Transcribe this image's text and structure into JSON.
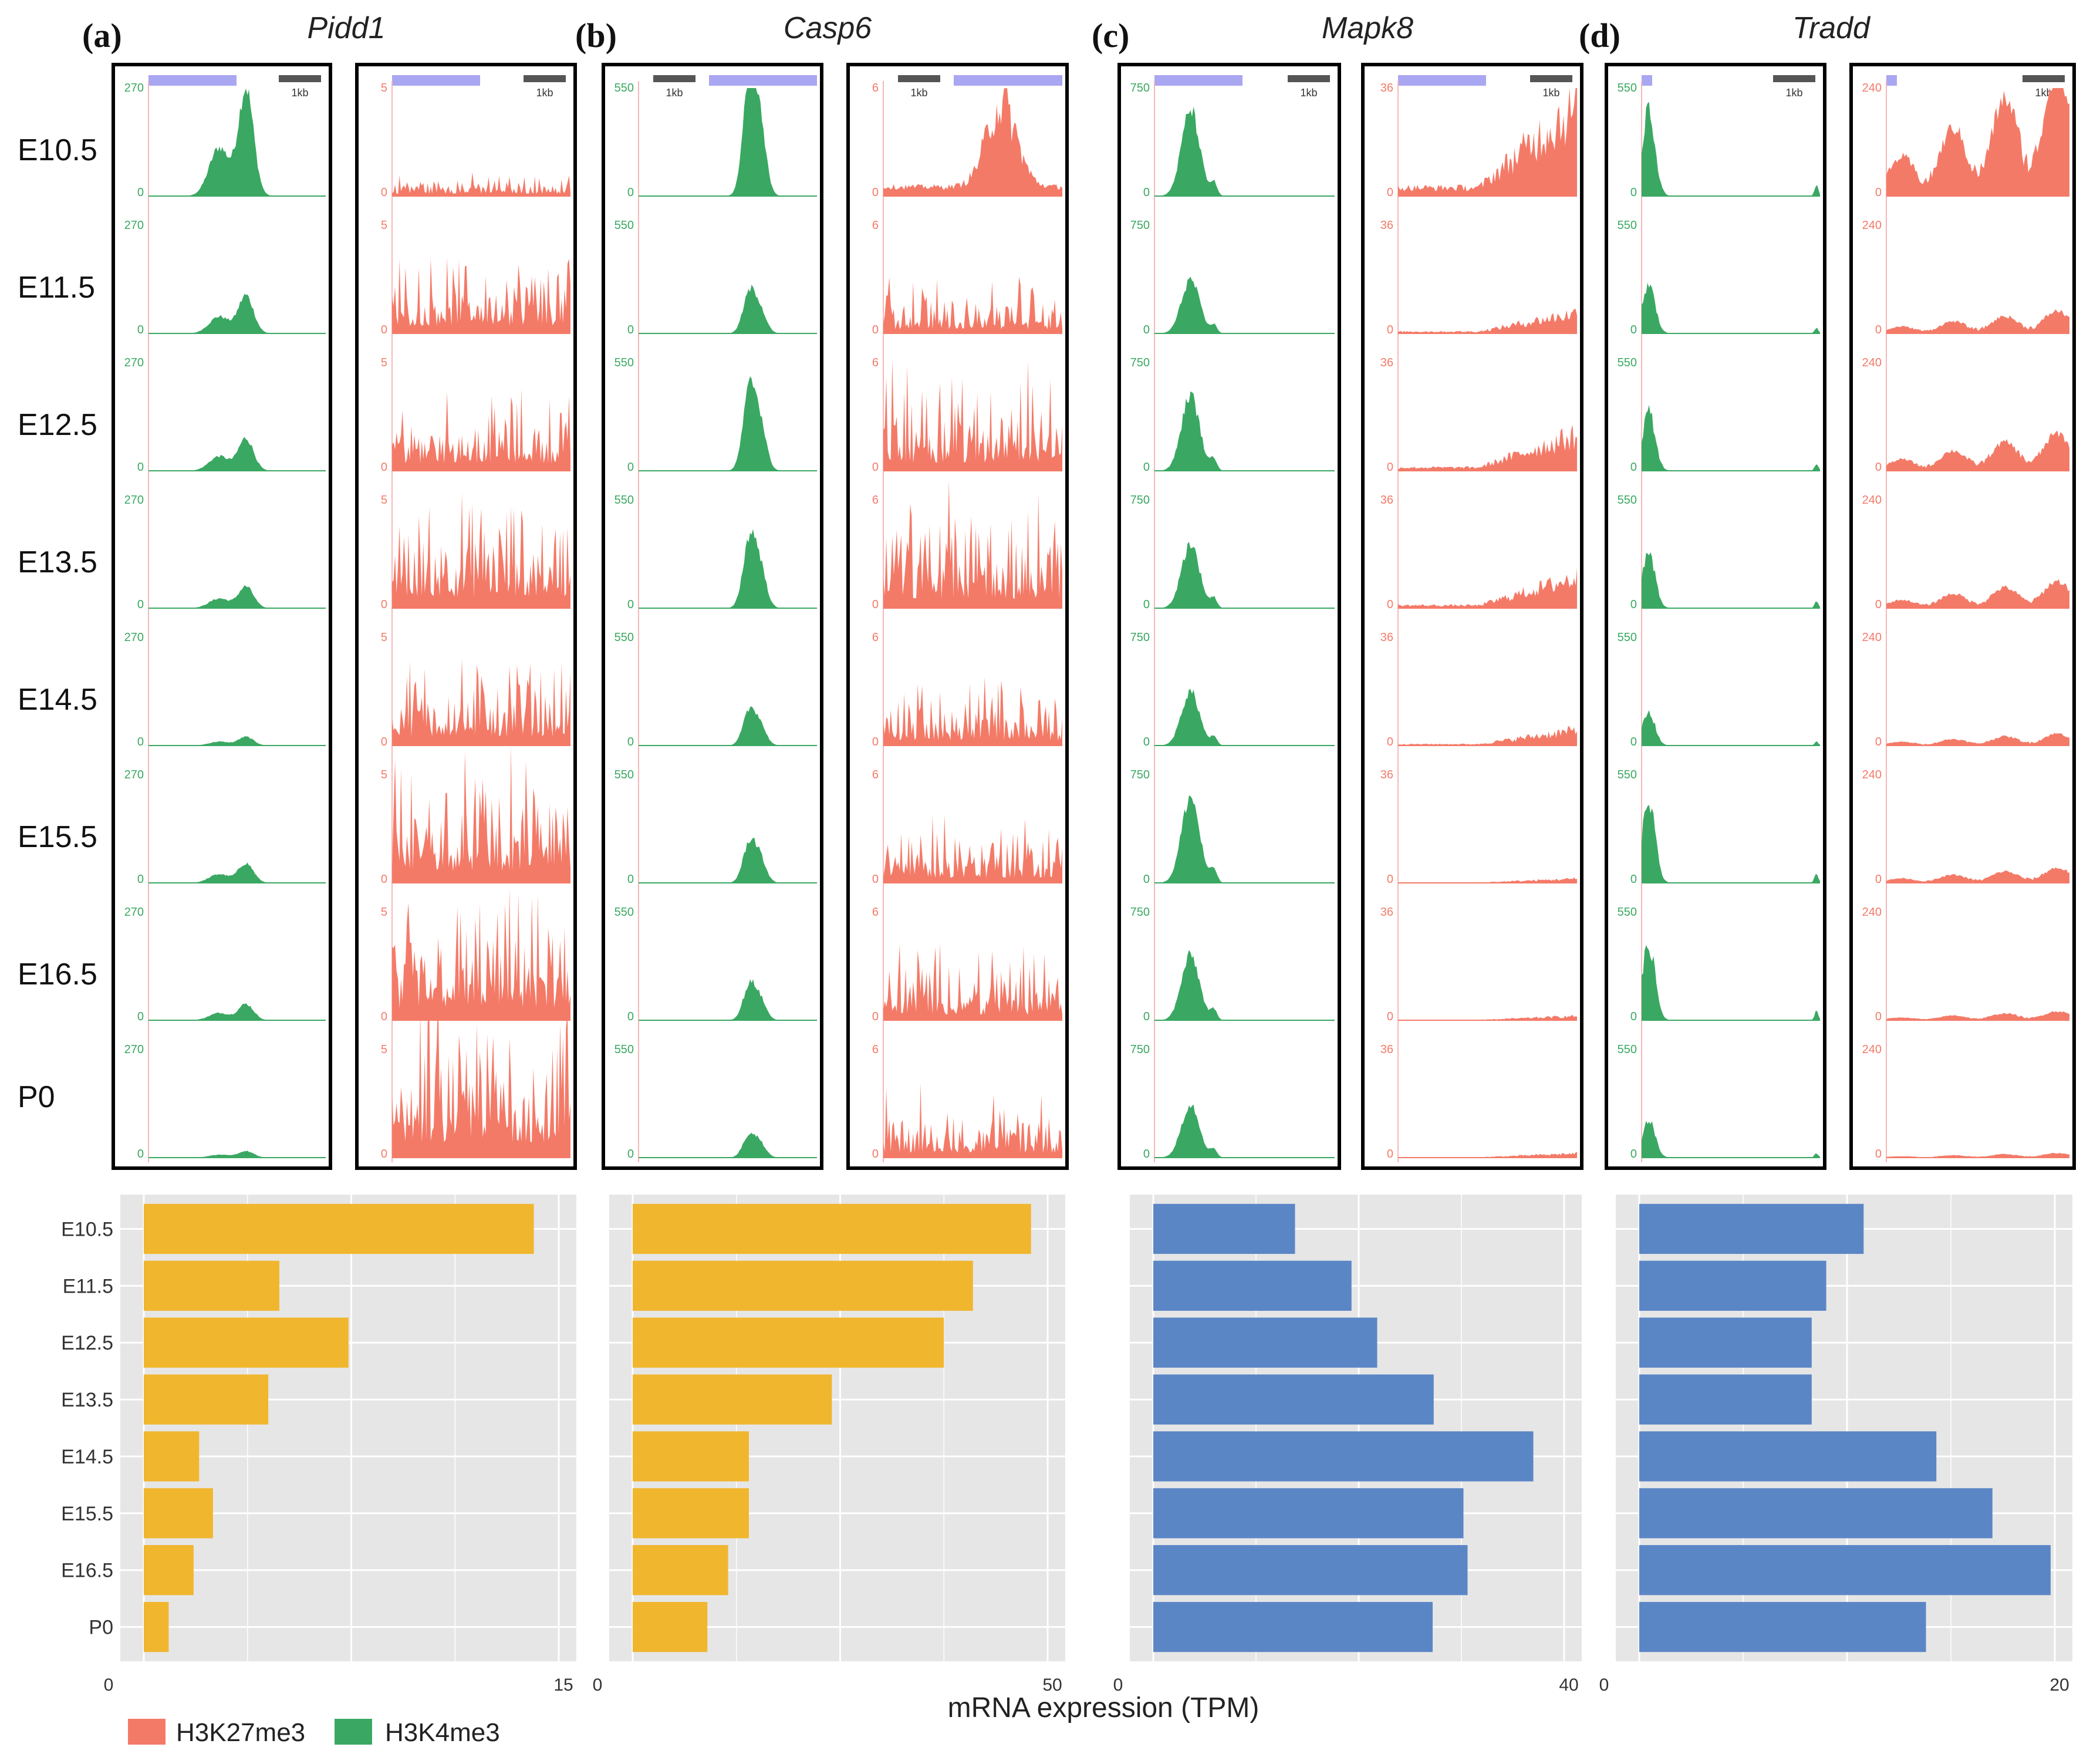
{
  "panels": [
    {
      "letter": "(a)",
      "gene": "Pidd1"
    },
    {
      "letter": "(b)",
      "gene": "Casp6"
    },
    {
      "letter": "(c)",
      "gene": "Mapk8"
    },
    {
      "letter": "(d)",
      "gene": "Tradd"
    }
  ],
  "stages": [
    "E10.5",
    "E11.5",
    "E12.5",
    "E13.5",
    "E14.5",
    "E15.5",
    "E16.5",
    "P0"
  ],
  "track_scales": {
    "h3k4me3": [
      "270",
      "550",
      "750",
      "550"
    ],
    "h3k27me3": [
      "5",
      "6",
      "36",
      "240"
    ],
    "zero": "0",
    "scale_bar": "1kb"
  },
  "legend": {
    "h3k27me3": "H3K27me3",
    "h3k4me3": "H3K4me3"
  },
  "colors": {
    "h3k4me3": "#3aa862",
    "h3k27me3": "#f47a68",
    "bar_orange": "#f0b62e",
    "bar_blue": "#5b86c6",
    "plot_bg": "#e6e6e6",
    "gene_model": "#a9a6f2"
  },
  "chart_data": [
    {
      "type": "bar",
      "orientation": "horizontal",
      "gene": "Pidd1",
      "categories": [
        "E10.5",
        "E11.5",
        "E12.5",
        "E13.5",
        "E14.5",
        "E15.5",
        "E16.5",
        "P0"
      ],
      "values": [
        14.1,
        4.9,
        7.4,
        4.5,
        2.0,
        2.5,
        1.8,
        0.9
      ],
      "xlim": [
        0,
        15
      ],
      "xticks": [
        "0",
        "15"
      ],
      "xlabel": "mRNA expression (TPM)"
    },
    {
      "type": "bar",
      "orientation": "horizontal",
      "gene": "Casp6",
      "categories": [
        "E10.5",
        "E11.5",
        "E12.5",
        "E13.5",
        "E14.5",
        "E15.5",
        "E16.5",
        "P0"
      ],
      "values": [
        48,
        41,
        37.5,
        24,
        14,
        14,
        11.5,
        9
      ],
      "xlim": [
        0,
        50
      ],
      "xticks": [
        "0",
        "50"
      ],
      "xlabel": "mRNA expression (TPM)"
    },
    {
      "type": "bar",
      "orientation": "horizontal",
      "gene": "Mapk8",
      "categories": [
        "E10.5",
        "E11.5",
        "E12.5",
        "E13.5",
        "E14.5",
        "E15.5",
        "E16.5",
        "P0"
      ],
      "values": [
        13.8,
        19.3,
        21.8,
        27.3,
        37,
        30.2,
        30.6,
        27.2
      ],
      "xlim": [
        0,
        40
      ],
      "xticks": [
        "0",
        "40"
      ],
      "xlabel": "mRNA expression (TPM)"
    },
    {
      "type": "bar",
      "orientation": "horizontal",
      "gene": "Tradd",
      "categories": [
        "E10.5",
        "E11.5",
        "E12.5",
        "E13.5",
        "E14.5",
        "E15.5",
        "E16.5",
        "P0"
      ],
      "values": [
        10.8,
        9,
        8.3,
        8.3,
        14.3,
        17,
        19.8,
        13.8
      ],
      "xlim": [
        0,
        20
      ],
      "xticks": [
        "0",
        "20"
      ],
      "xlabel": "mRNA expression (TPM)"
    }
  ],
  "xlabel": "mRNA expression (TPM)"
}
